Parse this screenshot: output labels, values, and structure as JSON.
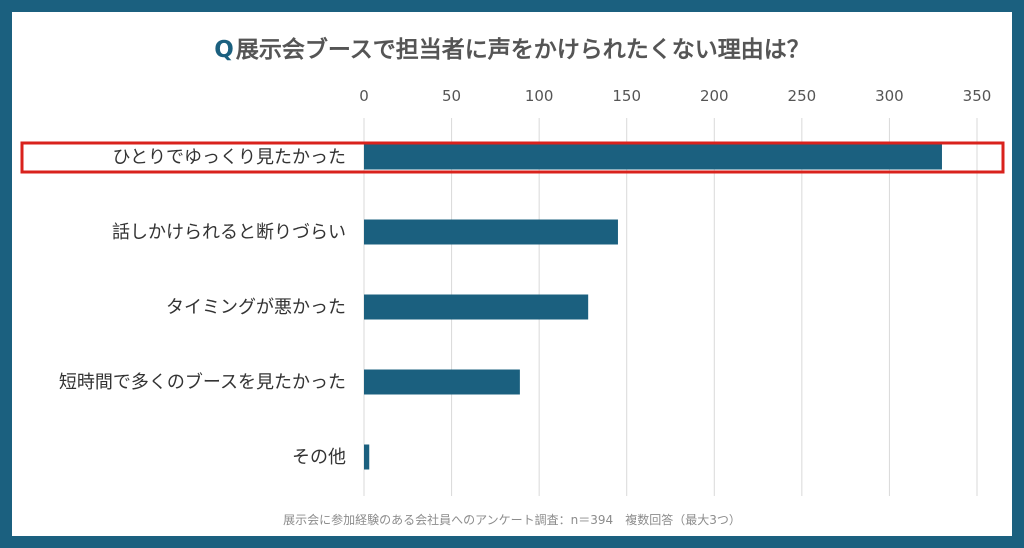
{
  "title_prefix": "Q",
  "title": "展示会ブースで担当者に声をかけられたくない理由は？",
  "footnote": "展示会に参加経験のある会社員へのアンケート調査：n＝394　複数回答（最大3つ）",
  "colors": {
    "frame": "#1b607f",
    "bar": "#1b607f",
    "highlight": "#d9221c",
    "grid": "#d9d9d9",
    "text": "#555555"
  },
  "chart_data": {
    "type": "bar",
    "orientation": "horizontal",
    "xaxis_position": "top",
    "categories": [
      "ひとりでゆっくり見たかった",
      "話しかけられると断りづらい",
      "タイミングが悪かった",
      "短時間で多くのブースを見たかった",
      "その他"
    ],
    "values": [
      330,
      145,
      128,
      89,
      3
    ],
    "xlim": [
      0,
      350
    ],
    "xticks": [
      0,
      50,
      100,
      150,
      200,
      250,
      300,
      350
    ],
    "grid": true,
    "highlighted_category": "ひとりでゆっくり見たかった"
  }
}
